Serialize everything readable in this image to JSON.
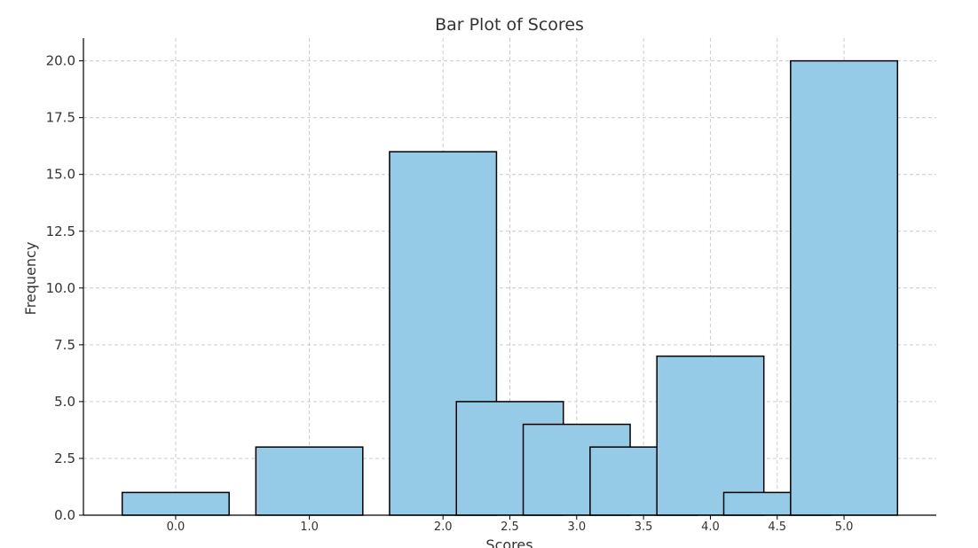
{
  "chart_data": {
    "type": "bar",
    "title": "Bar Plot of Scores",
    "xlabel": "Scores",
    "ylabel": "Frequency",
    "x": [
      0.0,
      1.0,
      2.0,
      2.5,
      3.0,
      3.5,
      4.0,
      4.5,
      5.0
    ],
    "values": [
      1,
      3,
      16,
      5,
      4,
      3,
      7,
      1,
      20
    ],
    "bar_width": 0.8,
    "xticks": [
      0.0,
      1.0,
      2.0,
      2.5,
      3.0,
      3.5,
      4.0,
      4.5,
      5.0
    ],
    "xtick_labels": [
      "0.0",
      "1.0",
      "2.0",
      "2.5",
      "3.0",
      "3.5",
      "4.0",
      "4.5",
      "5.0"
    ],
    "yticks": [
      0.0,
      2.5,
      5.0,
      7.5,
      10.0,
      12.5,
      15.0,
      17.5,
      20.0
    ],
    "ytick_labels": [
      "0.0",
      "2.5",
      "5.0",
      "7.5",
      "10.0",
      "12.5",
      "15.0",
      "17.5",
      "20.0"
    ],
    "xlim": [
      -0.69,
      5.69
    ],
    "ylim": [
      0,
      21
    ],
    "grid": true,
    "bar_color": "#96cbe8",
    "edge_color": "#000000"
  }
}
